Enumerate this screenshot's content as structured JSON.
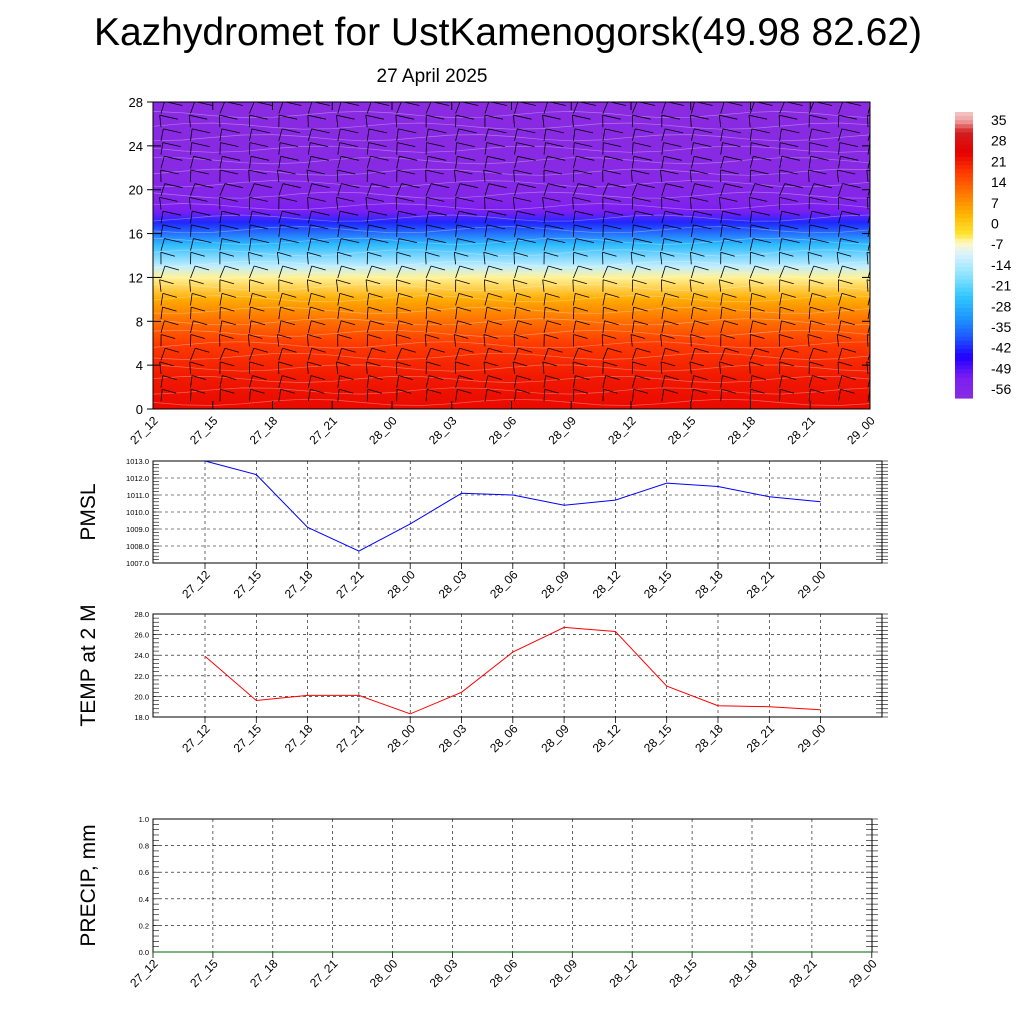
{
  "header": {
    "title": "Kazhydromet for UstKamenogorsk(49.98 82.62)",
    "subtitle": "27 April 2025"
  },
  "colors": {
    "pmsl_line": "#0000ff",
    "temp_line": "#ff0000",
    "precip_line": "#006400",
    "grid": "#000000"
  },
  "chart_data": [
    {
      "type": "heatmap",
      "name_hint": "wind-temperature cross section",
      "x": [
        "27_12",
        "27_15",
        "27_18",
        "27_21",
        "28_00",
        "28_03",
        "28_06",
        "28_09",
        "28_12",
        "28_15",
        "28_18",
        "28_21",
        "29_00"
      ],
      "yticks": [
        0,
        4,
        8,
        12,
        16,
        20,
        24,
        28
      ],
      "ylim": [
        0,
        28
      ],
      "colorbar": {
        "labels": [
          "35",
          "28",
          "21",
          "14",
          "7",
          "0",
          "-7",
          "-14",
          "-21",
          "-28",
          "-35",
          "-42",
          "-49",
          "-56"
        ],
        "stops": [
          {
            "v": -63,
            "c": "#8a2be2"
          },
          {
            "v": -56,
            "c": "#7a1ef2"
          },
          {
            "v": -49,
            "c": "#2000ff"
          },
          {
            "v": -42,
            "c": "#1e5aff"
          },
          {
            "v": -35,
            "c": "#1e9bff"
          },
          {
            "v": -28,
            "c": "#32c8ff"
          },
          {
            "v": -21,
            "c": "#8be4ff"
          },
          {
            "v": -14,
            "c": "#d7f2ff"
          },
          {
            "v": -10,
            "c": "#fff8c8"
          },
          {
            "v": -7,
            "c": "#ffe632"
          },
          {
            "v": 0,
            "c": "#ffb400"
          },
          {
            "v": 7,
            "c": "#ff7800"
          },
          {
            "v": 14,
            "c": "#ff3c00"
          },
          {
            "v": 21,
            "c": "#e60000"
          },
          {
            "v": 28,
            "c": "#d21e1e"
          },
          {
            "v": 32,
            "c": "#f0a0a0"
          },
          {
            "v": 35,
            "c": "#f5c8c8"
          }
        ]
      },
      "profile": [
        {
          "level": 0,
          "value": 20
        },
        {
          "level": 3,
          "value": 18
        },
        {
          "level": 6,
          "value": 14
        },
        {
          "level": 8,
          "value": 8
        },
        {
          "level": 10,
          "value": 1
        },
        {
          "level": 12,
          "value": -9
        },
        {
          "level": 13,
          "value": -16
        },
        {
          "level": 15,
          "value": -30
        },
        {
          "level": 17,
          "value": -46
        },
        {
          "level": 18,
          "value": -56
        },
        {
          "level": 19,
          "value": -60
        },
        {
          "level": 22,
          "value": -62
        },
        {
          "level": 28,
          "value": -63
        }
      ]
    },
    {
      "type": "line",
      "x": [
        "27_12",
        "27_15",
        "27_18",
        "27_21",
        "28_00",
        "28_03",
        "28_06",
        "28_09",
        "28_12",
        "28_15",
        "28_18",
        "28_21",
        "29_00"
      ],
      "series": [
        {
          "values": [
            1013.0,
            1012.2,
            1009.1,
            1007.7,
            1009.3,
            1011.1,
            1011.0,
            1010.4,
            1010.7,
            1011.7,
            1011.5,
            1010.9,
            1010.6
          ]
        }
      ],
      "ylabel": "PMSL",
      "ylim": [
        1007.0,
        1013.0
      ],
      "yticks": [
        "1007.0",
        "1008.0",
        "1009.0",
        "1010.0",
        "1011.0",
        "1012.0",
        "1013.0"
      ],
      "grid": true
    },
    {
      "type": "line",
      "x": [
        "27_12",
        "27_15",
        "27_18",
        "27_21",
        "28_00",
        "28_03",
        "28_06",
        "28_09",
        "28_12",
        "28_15",
        "28_18",
        "28_21",
        "29_00"
      ],
      "series": [
        {
          "values": [
            23.9,
            19.6,
            20.1,
            20.1,
            18.3,
            20.4,
            24.3,
            26.7,
            26.3,
            21.0,
            19.1,
            19.0,
            18.7
          ]
        }
      ],
      "ylabel": "TEMP at 2 M",
      "ylim": [
        18.0,
        28.0
      ],
      "yticks": [
        "18.0",
        "20.0",
        "22.0",
        "24.0",
        "26.0",
        "28.0"
      ],
      "grid": true
    },
    {
      "type": "line",
      "x": [
        "27_12",
        "27_15",
        "27_18",
        "27_21",
        "28_00",
        "28_03",
        "28_06",
        "28_09",
        "28_12",
        "28_15",
        "28_18",
        "28_21",
        "29_00"
      ],
      "series": [
        {
          "values": [
            0,
            0,
            0,
            0,
            0,
            0,
            0,
            0,
            0,
            0,
            0,
            0,
            0
          ]
        }
      ],
      "ylabel": "PRECIP, mm",
      "ylim": [
        0.0,
        1.0
      ],
      "yticks": [
        "0.0",
        "0.2",
        "0.4",
        "0.6",
        "0.8",
        "1.0"
      ],
      "grid": true
    }
  ]
}
